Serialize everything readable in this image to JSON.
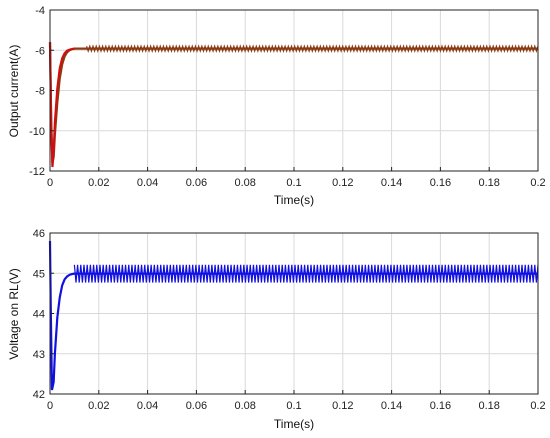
{
  "chart_data": [
    {
      "type": "line",
      "xlabel": "Time(s)",
      "ylabel": "Output current(A)",
      "xlim": [
        0,
        0.2
      ],
      "ylim": [
        -12,
        -4
      ],
      "xticks": [
        "0",
        "0.02",
        "0.04",
        "0.06",
        "0.08",
        "0.1",
        "0.12",
        "0.14",
        "0.16",
        "0.18",
        "0.2"
      ],
      "yticks": [
        "-12",
        "-10",
        "-8",
        "-6",
        "-4"
      ],
      "grid": true,
      "series": [
        {
          "color": "#8b3a12",
          "x": [
            0,
            0.0005,
            0.001,
            0.0015,
            0.002,
            0.003,
            0.004,
            0.005,
            0.006,
            0.007,
            0.008,
            0.009,
            0.01,
            0.015,
            0.02,
            0.2
          ],
          "y": [
            -5.6,
            -9.5,
            -11.6,
            -11.3,
            -10.2,
            -8.6,
            -7.4,
            -6.7,
            -6.3,
            -6.1,
            -6.0,
            -5.95,
            -5.92,
            -5.92,
            -5.92,
            -5.92
          ],
          "ripple": 0.12
        },
        {
          "color": "#d01010",
          "x": [
            0,
            0.0005,
            0.001,
            0.0015,
            0.002,
            0.003,
            0.004,
            0.005,
            0.006,
            0.007,
            0.008,
            0.009,
            0.01
          ],
          "y": [
            -5.6,
            -9.8,
            -11.8,
            -11.0,
            -9.6,
            -7.9,
            -6.9,
            -6.4,
            -6.15,
            -6.02,
            -5.97,
            -5.94,
            -5.92
          ]
        }
      ]
    },
    {
      "type": "line",
      "xlabel": "Time(s)",
      "ylabel": "Voltage on RL(V)",
      "xlim": [
        0,
        0.2
      ],
      "ylim": [
        42,
        46
      ],
      "xticks": [
        "0",
        "0.02",
        "0.04",
        "0.06",
        "0.08",
        "0.1",
        "0.12",
        "0.14",
        "0.16",
        "0.18",
        "0.2"
      ],
      "yticks": [
        "42",
        "43",
        "44",
        "45",
        "46"
      ],
      "grid": true,
      "series": [
        {
          "color": "#1010e0",
          "x": [
            0,
            0.0003,
            0.0008,
            0.0015,
            0.002,
            0.003,
            0.004,
            0.005,
            0.006,
            0.007,
            0.008,
            0.009,
            0.01,
            0.012,
            0.2
          ],
          "y": [
            45.8,
            44.2,
            42.1,
            42.3,
            43.0,
            43.9,
            44.4,
            44.7,
            44.85,
            44.92,
            44.96,
            44.98,
            44.99,
            44.99,
            44.99
          ],
          "ripple": 0.22
        }
      ]
    }
  ]
}
